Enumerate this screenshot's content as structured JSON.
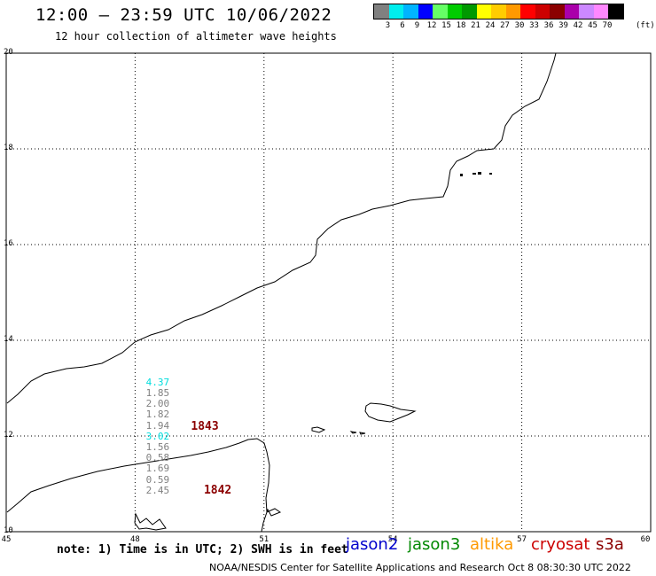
{
  "header": {
    "title": "12:00 – 23:59 UTC 10/06/2022",
    "subtitle": "12 hour collection of altimeter wave heights"
  },
  "legend": {
    "unit": "(ft)",
    "items": [
      {
        "label": "3",
        "color": "#808080"
      },
      {
        "label": "6",
        "color": "#00eeee"
      },
      {
        "label": "9",
        "color": "#00b4ff"
      },
      {
        "label": "12",
        "color": "#0000ff"
      },
      {
        "label": "15",
        "color": "#66ff66"
      },
      {
        "label": "18",
        "color": "#00cc00"
      },
      {
        "label": "21",
        "color": "#009900"
      },
      {
        "label": "24",
        "color": "#ffff00"
      },
      {
        "label": "27",
        "color": "#ffcc00"
      },
      {
        "label": "30",
        "color": "#ff9900"
      },
      {
        "label": "33",
        "color": "#ff0000"
      },
      {
        "label": "36",
        "color": "#cc0000"
      },
      {
        "label": "39",
        "color": "#8b0000"
      },
      {
        "label": "42",
        "color": "#aa00aa"
      },
      {
        "label": "45",
        "color": "#cc88ff"
      },
      {
        "label": "70",
        "color": "#ff88ff"
      },
      {
        "label": "",
        "color": "#000000"
      }
    ]
  },
  "axes": {
    "x_ticks": [
      "45",
      "48",
      "51",
      "54",
      "57",
      "60"
    ],
    "y_ticks": [
      "20",
      "18",
      "16",
      "14",
      "12",
      "10"
    ]
  },
  "observations": [
    {
      "value": "4.37",
      "color": "#00dddd",
      "lon": 48.8,
      "lat": 13.12
    },
    {
      "value": "1.85",
      "color": "#808080",
      "lon": 48.8,
      "lat": 12.89
    },
    {
      "value": "2.00",
      "color": "#808080",
      "lon": 48.8,
      "lat": 12.66
    },
    {
      "value": "1.82",
      "color": "#808080",
      "lon": 48.8,
      "lat": 12.44
    },
    {
      "value": "1.94",
      "color": "#808080",
      "lon": 48.8,
      "lat": 12.21
    },
    {
      "value": "3.02",
      "color": "#00dddd",
      "lon": 48.8,
      "lat": 11.98
    },
    {
      "value": "1.56",
      "color": "#808080",
      "lon": 48.8,
      "lat": 11.76
    },
    {
      "value": "0.58",
      "color": "#808080",
      "lon": 48.8,
      "lat": 11.53
    },
    {
      "value": "1.69",
      "color": "#808080",
      "lon": 48.8,
      "lat": 11.31
    },
    {
      "value": "0.59",
      "color": "#808080",
      "lon": 48.8,
      "lat": 11.08
    },
    {
      "value": "2.45",
      "color": "#808080",
      "lon": 48.8,
      "lat": 10.86
    }
  ],
  "track_labels": [
    {
      "text": "1843",
      "lon": 49.3,
      "lat": 12.18
    },
    {
      "text": "1842",
      "lon": 49.6,
      "lat": 10.86
    }
  ],
  "footer": {
    "note": "note: 1) Time is in UTC; 2) SWH is in feet",
    "satellites": [
      {
        "name": "jason2",
        "color": "#0000cc"
      },
      {
        "name": "jason3",
        "color": "#008800"
      },
      {
        "name": "altika",
        "color": "#ff9900"
      },
      {
        "name": "cryosat",
        "color": "#cc0000"
      },
      {
        "name": "s3a",
        "color": "#8b0000"
      }
    ],
    "credit": "NOAA/NESDIS Center for Satellite Applications and Research    Oct  8 08:30:30 UTC 2022"
  }
}
